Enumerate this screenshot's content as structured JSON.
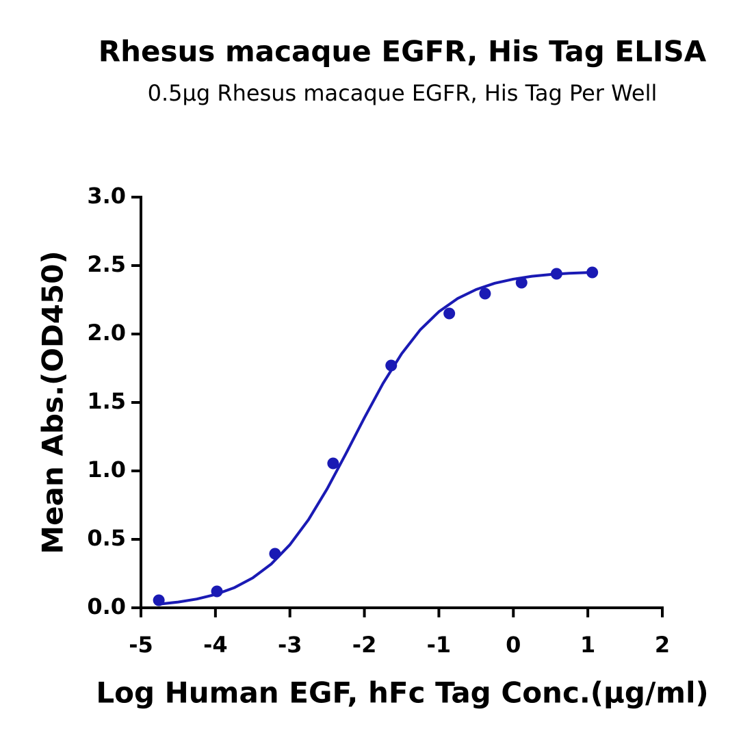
{
  "chart_data": {
    "type": "scatter",
    "title": "Rhesus macaque EGFR, His Tag ELISA",
    "subtitle": "0.5µg Rhesus macaque EGFR, His Tag Per Well",
    "x_label": "Log Human EGF, hFc Tag Conc.(µg/ml)",
    "y_label": "Mean Abs.(OD450)",
    "xlim": [
      -5,
      2
    ],
    "ylim": [
      0,
      3
    ],
    "xticks": [
      -5,
      -4,
      -3,
      -2,
      -1,
      0,
      1,
      2
    ],
    "yticks": [
      {
        "value": 0,
        "label": "0.0"
      },
      {
        "value": 0.5,
        "label": "0.5"
      },
      {
        "value": 1,
        "label": "1.0"
      },
      {
        "value": 1.5,
        "label": "1.5"
      },
      {
        "value": 2,
        "label": "2.0"
      },
      {
        "value": 2.5,
        "label": "2.5"
      },
      {
        "value": 3,
        "label": "3.0"
      }
    ],
    "series": [
      {
        "color": "#1a1ab4",
        "mode": "markers",
        "x": [
          -4.76,
          -3.98,
          -3.2,
          -2.42,
          -1.64,
          -0.86,
          -0.38,
          0.11,
          0.58,
          1.06
        ],
        "values": [
          0.055,
          0.12,
          0.395,
          1.055,
          1.77,
          2.15,
          2.295,
          2.375,
          2.44,
          2.45
        ]
      },
      {
        "color": "#1a1ab4",
        "mode": "line",
        "x": [
          -4.75,
          -4.5,
          -4.25,
          -4,
          -3.75,
          -3.5,
          -3.25,
          -3,
          -2.75,
          -2.5,
          -2.25,
          -2,
          -1.75,
          -1.5,
          -1.25,
          -1,
          -0.75,
          -0.5,
          -0.25,
          0,
          0.25,
          0.5,
          0.75,
          1.05
        ],
        "values": [
          0.027,
          0.042,
          0.064,
          0.097,
          0.146,
          0.218,
          0.32,
          0.461,
          0.644,
          0.869,
          1.124,
          1.388,
          1.639,
          1.856,
          2.031,
          2.163,
          2.259,
          2.325,
          2.371,
          2.401,
          2.422,
          2.435,
          2.444,
          2.45
        ]
      }
    ]
  }
}
